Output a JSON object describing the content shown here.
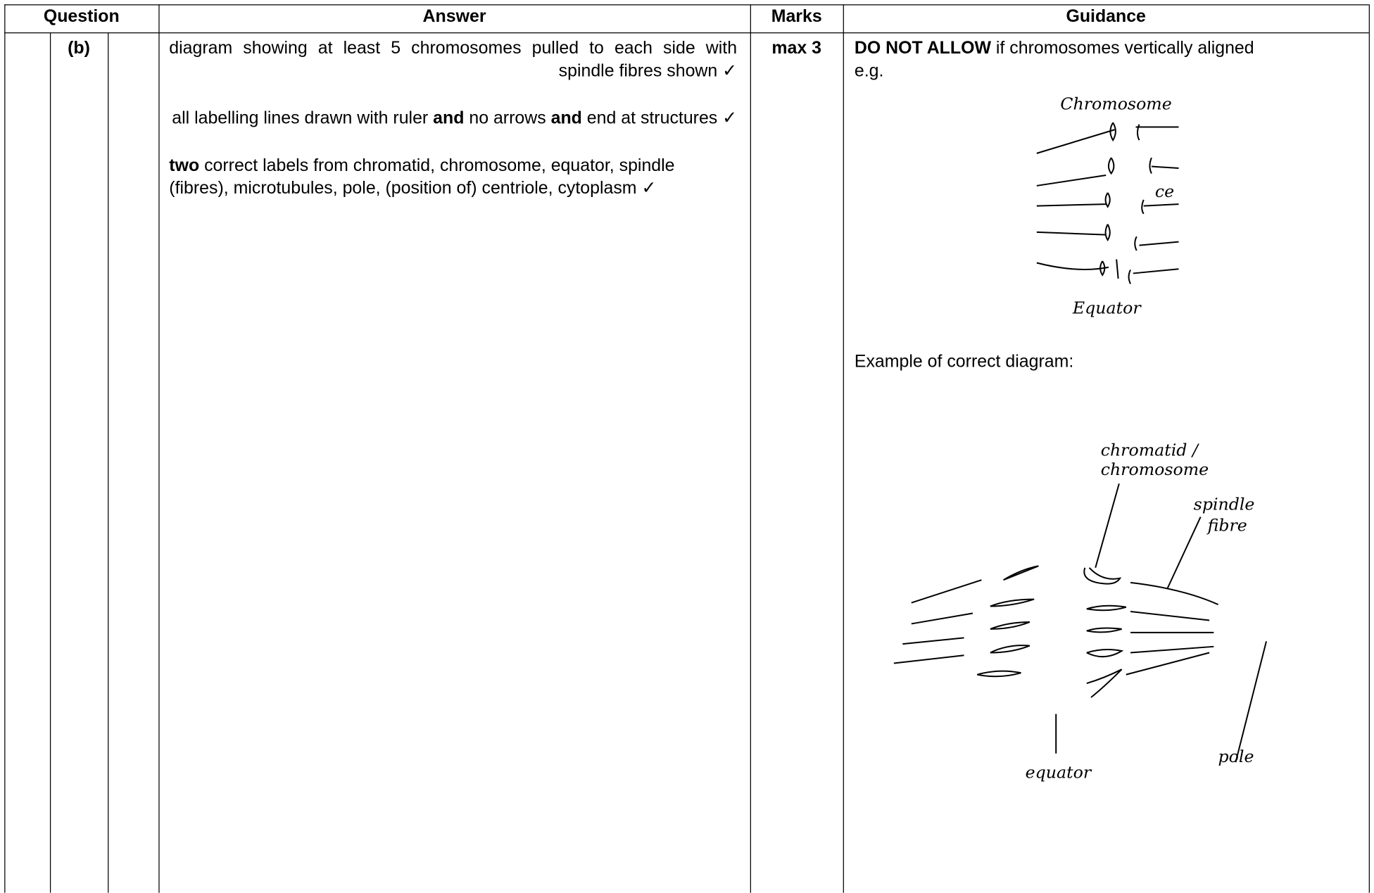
{
  "header": {
    "question": "Question",
    "answer": "Answer",
    "marks": "Marks",
    "guidance": "Guidance"
  },
  "question": {
    "part": "(b)"
  },
  "answer": {
    "items": [
      {
        "runs": [
          {
            "text": "diagram showing at least 5 chromosomes pulled to each side with spindle fibres shown ✓"
          }
        ]
      },
      {
        "runs": [
          {
            "text": "all labelling lines drawn with ruler "
          },
          {
            "text": "and",
            "bold": true
          },
          {
            "text": " no arrows "
          },
          {
            "text": "and",
            "bold": true
          },
          {
            "text": " end at structures ✓"
          }
        ]
      },
      {
        "runs": [
          {
            "text": "two",
            "bold": true
          },
          {
            "text": " correct labels from chromatid, chromosome, equator, spindle (fibres), microtubules, pole, (position of) centriole, cytoplasm ✓"
          }
        ]
      }
    ]
  },
  "marks": {
    "value": "max 3"
  },
  "guidance": {
    "runs": [
      {
        "text": "DO NOT ALLOW",
        "bold": true
      },
      {
        "text": " if chromosomes vertically aligned"
      }
    ],
    "eg": "e.g.",
    "wrong_diagram": {
      "chromosome": "Chromosome",
      "equator": "Equator",
      "cut": "ce"
    },
    "example": "Example of correct diagram:",
    "correct_diagram": {
      "chromatid": "chromatid /",
      "chromosome": "chromosome",
      "spindle": "spindle",
      "fibre": "fibre",
      "equator": "equator",
      "pole": "pole"
    }
  }
}
